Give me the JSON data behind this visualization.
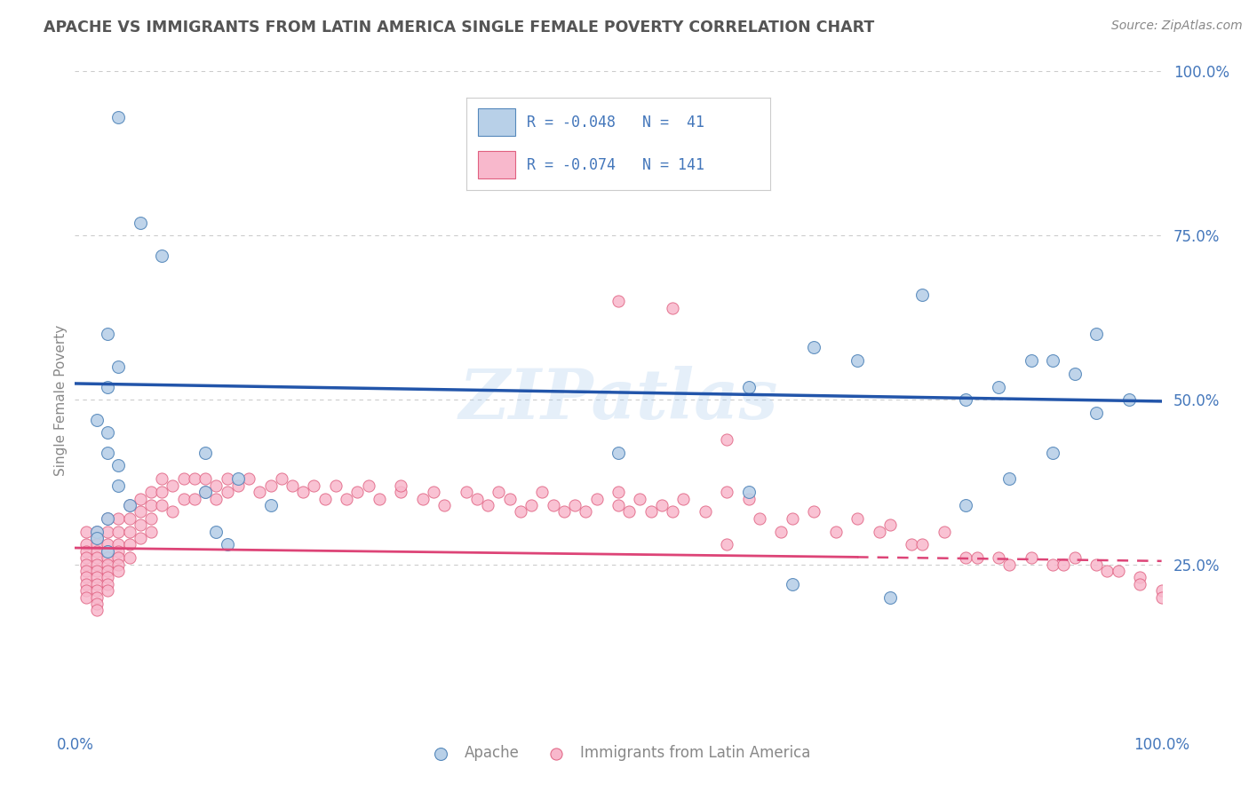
{
  "title": "APACHE VS IMMIGRANTS FROM LATIN AMERICA SINGLE FEMALE POVERTY CORRELATION CHART",
  "source": "Source: ZipAtlas.com",
  "ylabel": "Single Female Poverty",
  "r_apache": -0.048,
  "n_apache": 41,
  "r_latin": -0.074,
  "n_latin": 141,
  "color_apache_fill": "#b8d0e8",
  "color_apache_edge": "#5588bb",
  "color_latin_fill": "#f8b8cc",
  "color_latin_edge": "#e06080",
  "color_apache_line": "#2255aa",
  "color_latin_line": "#dd4477",
  "color_latin_dashed": "#dd4477",
  "watermark": "ZIPatlas",
  "apache_x": [
    0.04,
    0.06,
    0.08,
    0.03,
    0.04,
    0.03,
    0.02,
    0.03,
    0.03,
    0.04,
    0.04,
    0.05,
    0.03,
    0.02,
    0.02,
    0.03,
    0.12,
    0.15,
    0.18,
    0.12,
    0.13,
    0.14,
    0.5,
    0.62,
    0.68,
    0.72,
    0.78,
    0.82,
    0.85,
    0.88,
    0.9,
    0.92,
    0.94,
    0.97,
    0.82,
    0.86,
    0.9,
    0.94,
    0.62,
    0.66,
    0.75
  ],
  "apache_y": [
    0.93,
    0.77,
    0.72,
    0.6,
    0.55,
    0.52,
    0.47,
    0.45,
    0.42,
    0.4,
    0.37,
    0.34,
    0.32,
    0.3,
    0.29,
    0.27,
    0.42,
    0.38,
    0.34,
    0.36,
    0.3,
    0.28,
    0.42,
    0.52,
    0.58,
    0.56,
    0.66,
    0.5,
    0.52,
    0.56,
    0.56,
    0.54,
    0.6,
    0.5,
    0.34,
    0.38,
    0.42,
    0.48,
    0.36,
    0.22,
    0.2
  ],
  "latin_x": [
    0.01,
    0.01,
    0.01,
    0.01,
    0.01,
    0.01,
    0.01,
    0.01,
    0.01,
    0.01,
    0.02,
    0.02,
    0.02,
    0.02,
    0.02,
    0.02,
    0.02,
    0.02,
    0.02,
    0.02,
    0.02,
    0.02,
    0.02,
    0.03,
    0.03,
    0.03,
    0.03,
    0.03,
    0.03,
    0.03,
    0.03,
    0.03,
    0.03,
    0.04,
    0.04,
    0.04,
    0.04,
    0.04,
    0.04,
    0.04,
    0.05,
    0.05,
    0.05,
    0.05,
    0.05,
    0.06,
    0.06,
    0.06,
    0.06,
    0.07,
    0.07,
    0.07,
    0.07,
    0.08,
    0.08,
    0.08,
    0.09,
    0.09,
    0.1,
    0.1,
    0.11,
    0.11,
    0.12,
    0.12,
    0.13,
    0.13,
    0.14,
    0.14,
    0.15,
    0.16,
    0.17,
    0.18,
    0.19,
    0.2,
    0.21,
    0.22,
    0.23,
    0.24,
    0.25,
    0.26,
    0.27,
    0.28,
    0.3,
    0.3,
    0.32,
    0.33,
    0.34,
    0.36,
    0.37,
    0.38,
    0.39,
    0.4,
    0.41,
    0.42,
    0.43,
    0.44,
    0.45,
    0.46,
    0.47,
    0.48,
    0.5,
    0.5,
    0.51,
    0.52,
    0.53,
    0.54,
    0.55,
    0.56,
    0.58,
    0.6,
    0.6,
    0.62,
    0.63,
    0.65,
    0.66,
    0.68,
    0.7,
    0.72,
    0.74,
    0.75,
    0.77,
    0.78,
    0.8,
    0.82,
    0.83,
    0.85,
    0.86,
    0.88,
    0.9,
    0.91,
    0.92,
    0.94,
    0.95,
    0.96,
    0.98,
    0.98,
    1.0,
    1.0,
    0.5,
    0.55,
    0.6
  ],
  "latin_y": [
    0.3,
    0.28,
    0.27,
    0.26,
    0.25,
    0.24,
    0.23,
    0.22,
    0.21,
    0.2,
    0.3,
    0.29,
    0.28,
    0.27,
    0.26,
    0.25,
    0.24,
    0.23,
    0.22,
    0.21,
    0.2,
    0.19,
    0.18,
    0.32,
    0.3,
    0.28,
    0.27,
    0.26,
    0.25,
    0.24,
    0.23,
    0.22,
    0.21,
    0.32,
    0.3,
    0.28,
    0.27,
    0.26,
    0.25,
    0.24,
    0.34,
    0.32,
    0.3,
    0.28,
    0.26,
    0.35,
    0.33,
    0.31,
    0.29,
    0.36,
    0.34,
    0.32,
    0.3,
    0.38,
    0.36,
    0.34,
    0.37,
    0.33,
    0.38,
    0.35,
    0.38,
    0.35,
    0.38,
    0.36,
    0.37,
    0.35,
    0.38,
    0.36,
    0.37,
    0.38,
    0.36,
    0.37,
    0.38,
    0.37,
    0.36,
    0.37,
    0.35,
    0.37,
    0.35,
    0.36,
    0.37,
    0.35,
    0.36,
    0.37,
    0.35,
    0.36,
    0.34,
    0.36,
    0.35,
    0.34,
    0.36,
    0.35,
    0.33,
    0.34,
    0.36,
    0.34,
    0.33,
    0.34,
    0.33,
    0.35,
    0.34,
    0.36,
    0.33,
    0.35,
    0.33,
    0.34,
    0.33,
    0.35,
    0.33,
    0.36,
    0.28,
    0.35,
    0.32,
    0.3,
    0.32,
    0.33,
    0.3,
    0.32,
    0.3,
    0.31,
    0.28,
    0.28,
    0.3,
    0.26,
    0.26,
    0.26,
    0.25,
    0.26,
    0.25,
    0.25,
    0.26,
    0.25,
    0.24,
    0.24,
    0.23,
    0.22,
    0.21,
    0.2,
    0.65,
    0.64,
    0.44
  ],
  "xlim": [
    0.0,
    1.0
  ],
  "ylim": [
    0.0,
    1.0
  ],
  "xticks": [
    0.0,
    0.25,
    0.5,
    0.75,
    1.0
  ],
  "xtick_labels": [
    "0.0%",
    "",
    "",
    "",
    "100.0%"
  ],
  "ytick_labels_right": [
    "",
    "25.0%",
    "50.0%",
    "75.0%",
    "100.0%"
  ],
  "grid_color": "#cccccc",
  "bg_color": "#ffffff",
  "tick_color": "#4477bb",
  "title_color": "#555555",
  "label_color": "#888888",
  "source_color": "#888888",
  "legend_border_color": "#cccccc"
}
